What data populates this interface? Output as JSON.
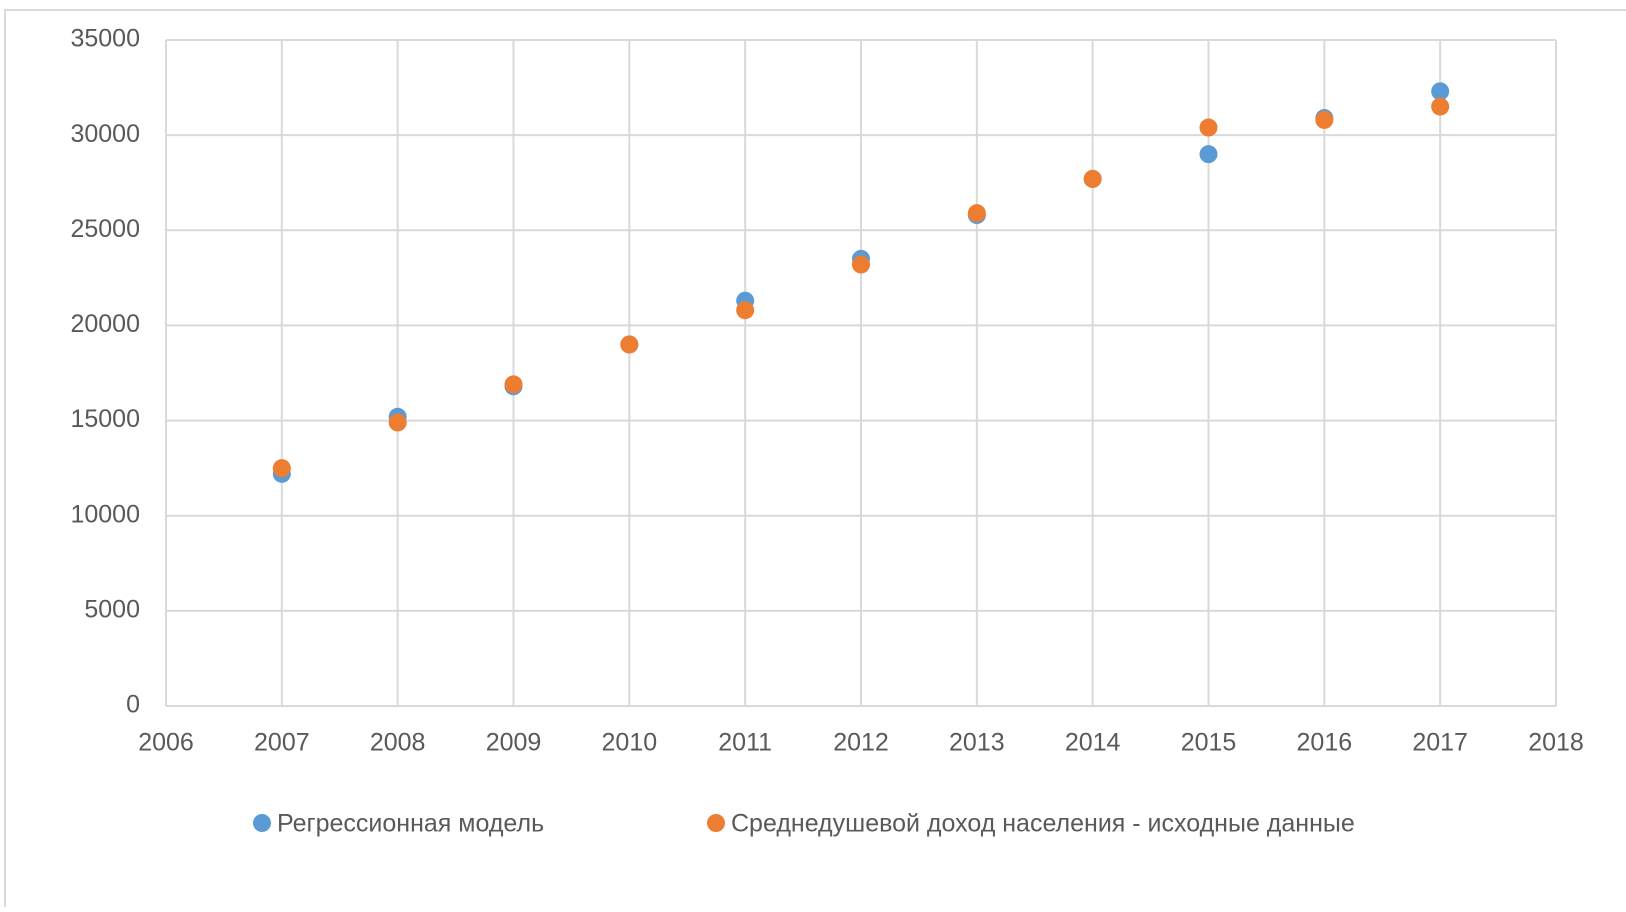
{
  "chart_data": {
    "type": "scatter",
    "series": [
      {
        "name": "Регрессионная модель",
        "color": "#5b9bd5",
        "x": [
          2007,
          2008,
          2009,
          2010,
          2011,
          2012,
          2013,
          2014,
          2015,
          2016,
          2017
        ],
        "values": [
          12200,
          15200,
          16800,
          19000,
          21300,
          23500,
          25800,
          27700,
          29000,
          30900,
          32300
        ]
      },
      {
        "name": "Среднедушевой доход населения - исходные данные",
        "color": "#ed7d31",
        "x": [
          2007,
          2008,
          2009,
          2010,
          2011,
          2012,
          2013,
          2014,
          2015,
          2016,
          2017
        ],
        "values": [
          12500,
          14900,
          16900,
          19000,
          20800,
          23200,
          25900,
          27700,
          30400,
          30800,
          31500
        ]
      }
    ],
    "xlim": [
      2006,
      2018
    ],
    "xticks": [
      2006,
      2007,
      2008,
      2009,
      2010,
      2011,
      2012,
      2013,
      2014,
      2015,
      2016,
      2017,
      2018
    ],
    "ylim": [
      0,
      35000
    ],
    "yticks": [
      0,
      5000,
      10000,
      15000,
      20000,
      25000,
      30000,
      35000
    ],
    "grid": true,
    "legend": "bottom"
  }
}
